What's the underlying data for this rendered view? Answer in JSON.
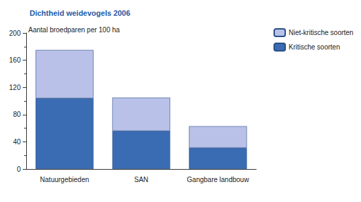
{
  "chart_data": {
    "type": "bar",
    "title": "Dichtheid weidevogels 2006",
    "subtitle": "Aantal broedparen per 100 ha",
    "categories": [
      "Natuurgebieden",
      "SAN",
      "Gangbare landbouw"
    ],
    "series": [
      {
        "name": "Kritische soorten",
        "color": "#3a6cb3",
        "values": [
          104,
          56,
          31
        ]
      },
      {
        "name": "Niet-kritische soorten",
        "color": "#b9c1e8",
        "values": [
          71,
          49,
          32
        ]
      }
    ],
    "ylim": [
      0,
      200
    ],
    "yticks": [
      0,
      40,
      80,
      120,
      160,
      200
    ],
    "stacked": true,
    "grid": false,
    "legend": "top-right"
  }
}
